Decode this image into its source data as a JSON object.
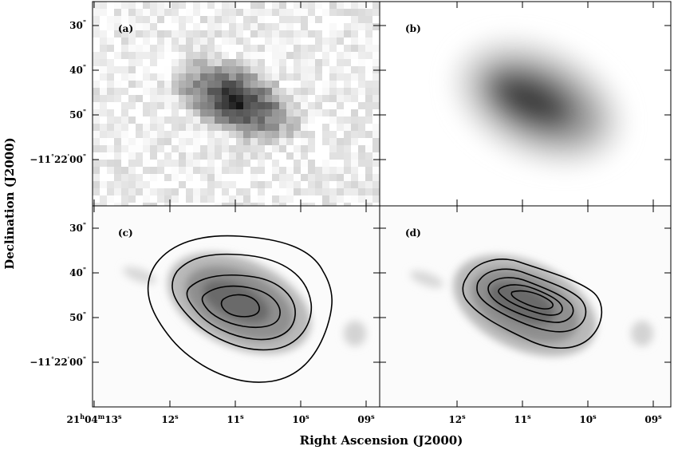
{
  "figure": {
    "xlabel": "Right Ascension (J2000)",
    "ylabel": "Declination (J2000)",
    "panels": [
      {
        "label": "(a)",
        "style": "pixelated"
      },
      {
        "label": "(b)",
        "style": "smooth"
      },
      {
        "label": "(c)",
        "style": "contour",
        "contour_levels": 5
      },
      {
        "label": "(d)",
        "style": "contour",
        "contour_levels": 5
      }
    ],
    "ra_ticks": [
      {
        "main": "21",
        "sup1": "h",
        "mid": "04",
        "sup2": "m",
        "last": "13",
        "sup3": "s"
      },
      {
        "main": "12",
        "sup1": "s"
      },
      {
        "main": "11",
        "sup1": "s"
      },
      {
        "main": "10",
        "sup1": "s"
      },
      {
        "main": "09",
        "sup1": "s"
      }
    ],
    "dec_ticks": [
      {
        "main": "30",
        "sup1": "\""
      },
      {
        "main": "40",
        "sup1": "\""
      },
      {
        "main": "50",
        "sup1": "\""
      },
      {
        "main": "−11",
        "sup1": "°",
        "mid": "22",
        "sup2": "'",
        "last": "00",
        "sup3": "\""
      }
    ]
  }
}
